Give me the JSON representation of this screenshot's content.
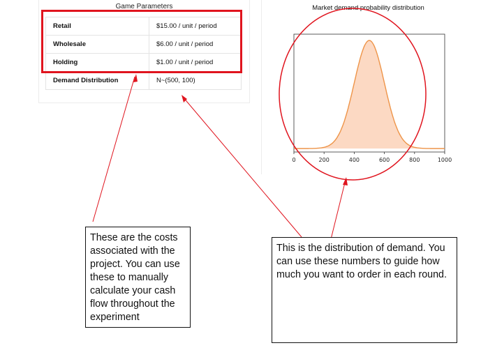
{
  "parameters": {
    "title": "Game Parameters",
    "rows": [
      {
        "label": "Retail",
        "value": "$15.00 / unit / period"
      },
      {
        "label": "Wholesale",
        "value": "$6.00 / unit / period"
      },
      {
        "label": "Holding",
        "value": "$1.00 / unit / period"
      },
      {
        "label": "Demand Distribution",
        "value": "N~(500, 100)"
      }
    ]
  },
  "chart_data": {
    "type": "area",
    "title": "Market demand probability distribution",
    "xlabel": "",
    "ylabel": "",
    "xlim": [
      0,
      1000
    ],
    "x_ticks": [
      "0",
      "200",
      "400",
      "600",
      "800",
      "1000"
    ],
    "distribution": {
      "kind": "normal",
      "mean": 500,
      "sd": 100
    },
    "fill_color": "#fcd9c3",
    "line_color": "#ee9448",
    "grid": false,
    "legend": "none"
  },
  "annotations": {
    "highlight_color": "#e0141e",
    "note_costs": "These are the costs associated with the project. You can use these to manually calculate your cash flow throughout the experiment",
    "note_distribution": "This is the distribution of demand. You can use these numbers to guide how much you want to order in each round."
  }
}
